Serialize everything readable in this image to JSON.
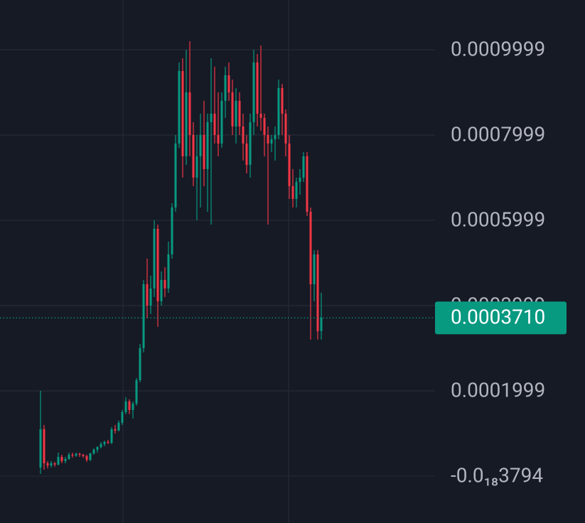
{
  "chart_data": {
    "type": "candlestick",
    "open": [
      2e-05,
      0.00011,
      3e-05,
      2.5e-05,
      3e-05,
      2.7e-05,
      4.5e-05,
      3.5e-05,
      4e-05,
      5e-05,
      4.8e-05,
      5.2e-05,
      5e-05,
      4.7e-05,
      3.8e-05,
      5.3e-05,
      6.2e-05,
      6.8e-05,
      7.5e-05,
      8e-05,
      7.8e-05,
      0.00011,
      0.000107,
      0.000125,
      0.00015,
      0.000175,
      0.000155,
      0.00017,
      0.000225,
      0.0003,
      0.00045,
      0.0004,
      0.00044,
      0.00058,
      0.00041,
      0.00046,
      0.00044,
      0.00052,
      0.00063,
      0.00078,
      0.00095,
      0.00075,
      0.0009,
      0.0008,
      0.0007,
      0.00075,
      0.0008,
      0.00072,
      0.00083,
      0.00085,
      0.0008,
      0.00078,
      0.00088,
      0.00094,
      0.0009,
      0.00082,
      0.00088,
      0.00082,
      0.00078,
      0.00073,
      0.00083,
      0.00097,
      0.00085,
      0.00084,
      0.0008,
      0.00078,
      0.00079,
      0.0008,
      0.00091,
      0.00085,
      0.00078,
      0.00068,
      0.00065,
      0.00069,
      0.0007,
      0.00075,
      0.00062,
      0.00045,
      0.00052,
      0.00034
    ],
    "high": [
      0.0002,
      0.00012,
      3.5e-05,
      3.5e-05,
      3.3e-05,
      5.5e-05,
      5e-05,
      4.5e-05,
      5.5e-05,
      5.5e-05,
      5.5e-05,
      5.5e-05,
      5.2e-05,
      5e-05,
      5.5e-05,
      6.5e-05,
      7e-05,
      8e-05,
      8.3e-05,
      8.5e-05,
      0.000115,
      0.00012,
      0.00013,
      0.000155,
      0.000185,
      0.00018,
      0.000175,
      0.00023,
      0.00031,
      0.00046,
      0.00051,
      0.00047,
      0.0006,
      0.00059,
      0.00048,
      0.00049,
      0.00055,
      0.00064,
      0.0008,
      0.00097,
      0.00098,
      0.001,
      0.00102,
      0.00083,
      0.0008,
      0.00085,
      0.00088,
      0.00085,
      0.00098,
      0.00096,
      0.0009,
      0.0009,
      0.00096,
      0.00097,
      0.00093,
      0.00091,
      0.0009,
      0.00085,
      0.0008,
      0.00085,
      0.001,
      0.00099,
      0.00101,
      0.00085,
      0.00082,
      0.0008,
      0.00082,
      0.00093,
      0.00092,
      0.00086,
      0.0008,
      0.00072,
      0.0007,
      0.00072,
      0.00076,
      0.00076,
      0.00063,
      0.00053,
      0.00053,
      0.00043
    ],
    "low": [
      5e-06,
      1.5e-05,
      1.8e-05,
      2e-05,
      2.2e-05,
      2.5e-05,
      3e-05,
      3e-05,
      3.8e-05,
      4.3e-05,
      4.5e-05,
      4.5e-05,
      4.3e-05,
      3.3e-05,
      3.5e-05,
      5e-05,
      5.5e-05,
      6.5e-05,
      7e-05,
      7.5e-05,
      7.5e-05,
      0.0001,
      0.000105,
      0.00012,
      0.000145,
      0.000145,
      0.000135,
      0.000165,
      0.00022,
      0.00029,
      0.00037,
      0.00038,
      0.00042,
      0.00035,
      0.0004,
      0.00042,
      0.00043,
      0.00051,
      0.00062,
      0.00077,
      0.0007,
      0.00073,
      0.00075,
      0.00068,
      0.0006,
      0.00063,
      0.00068,
      0.00062,
      0.00059,
      0.00078,
      0.00075,
      0.00077,
      0.00084,
      0.00088,
      0.0008,
      0.00078,
      0.0008,
      0.00074,
      0.00071,
      0.0007,
      0.0008,
      0.00082,
      0.00081,
      0.00075,
      0.00059,
      0.00076,
      0.00074,
      0.00079,
      0.0008,
      0.00075,
      0.00065,
      0.00063,
      0.00063,
      0.00066,
      0.00069,
      0.00061,
      0.00032,
      0.00041,
      0.00032,
      0.00032
    ],
    "close": [
      0.00011,
      3e-05,
      2.5e-05,
      3e-05,
      2.7e-05,
      4.5e-05,
      3.5e-05,
      4e-05,
      5e-05,
      4.8e-05,
      5.2e-05,
      5e-05,
      4.7e-05,
      3.8e-05,
      5.3e-05,
      6.2e-05,
      6.8e-05,
      7.5e-05,
      8e-05,
      7.8e-05,
      0.00011,
      0.000107,
      0.000125,
      0.00015,
      0.000175,
      0.000155,
      0.00017,
      0.000225,
      0.0003,
      0.00045,
      0.0004,
      0.00044,
      0.00058,
      0.00041,
      0.00046,
      0.00044,
      0.00052,
      0.00063,
      0.00078,
      0.00095,
      0.00075,
      0.0009,
      0.0008,
      0.0007,
      0.00075,
      0.0008,
      0.00072,
      0.00083,
      0.00085,
      0.0008,
      0.00078,
      0.00088,
      0.00094,
      0.0009,
      0.00082,
      0.00088,
      0.00082,
      0.00078,
      0.00073,
      0.00083,
      0.00097,
      0.00085,
      0.00084,
      0.0008,
      0.00078,
      0.00079,
      0.0008,
      0.00091,
      0.00085,
      0.00078,
      0.00068,
      0.00065,
      0.00069,
      0.0007,
      0.00075,
      0.00062,
      0.00045,
      0.00052,
      0.00034,
      0.000371
    ],
    "up_color": "#089981",
    "down_color": "#f23645",
    "ylim": [
      -0.0001101,
      0.0011166
    ],
    "yticks": [
      {
        "value": -3.794e-19,
        "label": "-0.0₁₈3794"
      },
      0.0001999,
      0.0003999,
      0.0005999,
      0.0007999,
      0.0009999
    ],
    "grid": true,
    "current_price": {
      "value": 0.000371,
      "label": "0.0003710"
    }
  }
}
